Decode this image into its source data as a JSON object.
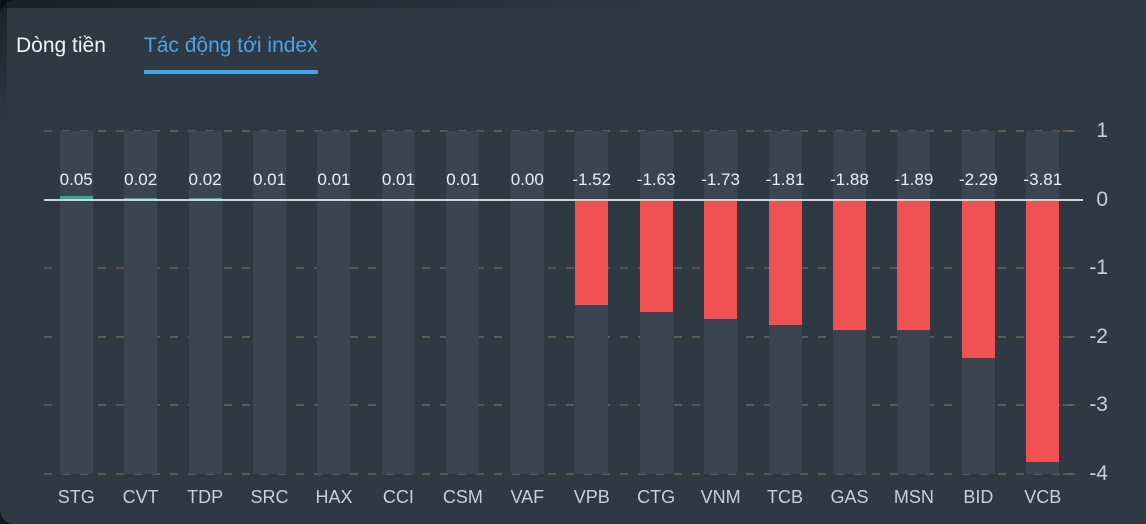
{
  "tabs": [
    {
      "label": "Dòng tiền",
      "active": false
    },
    {
      "label": "Tác động tới index",
      "active": true
    }
  ],
  "colors": {
    "panel_background": "#2f3944",
    "column_band": "#3a4551",
    "positive_bar": "#2bab9d",
    "negative_bar": "#f05152",
    "zero_line": "#cfd4d8",
    "gridline": "rgba(222,165,100,0.28)",
    "tab_active": "#4aa2e8",
    "tab_inactive": "#f2f4f6",
    "axis_text": "#c9cfd6",
    "value_text": "#eceff1"
  },
  "chart_data": {
    "type": "bar",
    "title": "Tác động tới index",
    "categories": [
      "STG",
      "CVT",
      "TDP",
      "SRC",
      "HAX",
      "CCI",
      "CSM",
      "VAF",
      "VPB",
      "CTG",
      "VNM",
      "TCB",
      "GAS",
      "MSN",
      "BID",
      "VCB"
    ],
    "values": [
      0.05,
      0.02,
      0.02,
      0.01,
      0.01,
      0.01,
      0.01,
      0.0,
      -1.52,
      -1.63,
      -1.73,
      -1.81,
      -1.88,
      -1.89,
      -2.29,
      -3.81
    ],
    "value_labels": [
      "0.05",
      "0.02",
      "0.02",
      "0.01",
      "0.01",
      "0.01",
      "0.01",
      "0.00",
      "-1.52",
      "-1.63",
      "-1.73",
      "-1.81",
      "-1.88",
      "-1.89",
      "-2.29",
      "-3.81"
    ],
    "xlabel": "",
    "ylabel": "",
    "y_axis": {
      "position": "right",
      "min": -4,
      "max": 1,
      "ticks": [
        1,
        0,
        -1,
        -2,
        -3,
        -4
      ]
    },
    "grid": "dashed horizontal",
    "legend": "none",
    "bar_colors": {
      "positive": "#2bab9d",
      "negative": "#f05152"
    },
    "value_label_position": "above zero line"
  }
}
